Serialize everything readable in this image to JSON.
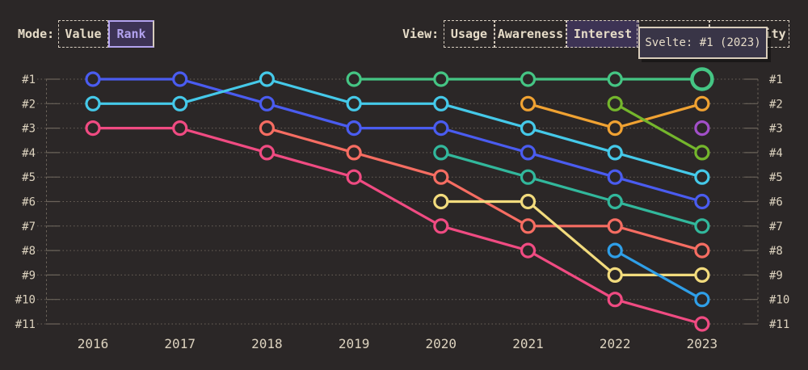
{
  "header": {
    "mode_label": "Mode:",
    "mode_options": [
      {
        "label": "Value",
        "selected": false
      },
      {
        "label": "Rank",
        "selected": true
      }
    ],
    "view_label": "View:",
    "view_options": [
      {
        "label": "Usage",
        "selected": false
      },
      {
        "label": "Awareness",
        "selected": false
      },
      {
        "label": "Interest",
        "selected": true
      },
      {
        "label": "",
        "selected": false
      },
      {
        "label": "Positivity",
        "selected": false
      }
    ]
  },
  "tooltip": {
    "text": "Svelte: #1 (2023)"
  },
  "colors": {
    "background": "#2b2727",
    "text_cream": "#e6dcc8",
    "grid": "#6b635a",
    "selected_bg": "#3d3355",
    "rank_accent": "#b2a2ee",
    "tooltip_bg": "#393547",
    "tooltip_border": "#d9cdbb"
  },
  "chart_data": {
    "type": "line",
    "subtype": "bump-chart-of-rankings",
    "title": "",
    "x": [
      2016,
      2017,
      2018,
      2019,
      2020,
      2021,
      2022,
      2023
    ],
    "y_ticks": [
      "#1",
      "#2",
      "#3",
      "#4",
      "#5",
      "#6",
      "#7",
      "#8",
      "#9",
      "#10",
      "#11"
    ],
    "y_axis": "rank, #1 at top",
    "grid": "dotted horizontal line per rank, dashed vertical axis lines both sides, rank labels on both sides",
    "legend_position": "none",
    "series": [
      {
        "name": "royal-blue",
        "color": "#4a5cf0",
        "ranks": [
          1,
          1,
          2,
          3,
          3,
          4,
          5,
          6
        ]
      },
      {
        "name": "cyan",
        "color": "#45c9e9",
        "ranks": [
          2,
          2,
          1,
          2,
          2,
          3,
          4,
          5
        ]
      },
      {
        "name": "pink",
        "color": "#f04b82",
        "ranks": [
          3,
          3,
          4,
          5,
          7,
          8,
          10,
          11
        ]
      },
      {
        "name": "salmon",
        "color": "#f66d62",
        "ranks": [
          null,
          null,
          3,
          4,
          5,
          7,
          7,
          8
        ]
      },
      {
        "name": "green",
        "color": "#45c584",
        "ranks": [
          null,
          null,
          null,
          1,
          1,
          1,
          1,
          1
        ]
      },
      {
        "name": "teal",
        "color": "#32b89c",
        "ranks": [
          null,
          null,
          null,
          null,
          4,
          5,
          6,
          7
        ]
      },
      {
        "name": "yellow",
        "color": "#f2db7d",
        "ranks": [
          null,
          null,
          null,
          null,
          6,
          6,
          9,
          9
        ]
      },
      {
        "name": "amber",
        "color": "#f0a232",
        "ranks": [
          null,
          null,
          null,
          null,
          null,
          2,
          3,
          2
        ]
      },
      {
        "name": "olive",
        "color": "#74b62c",
        "ranks": [
          null,
          null,
          null,
          null,
          null,
          null,
          2,
          4
        ]
      },
      {
        "name": "dodger-blue",
        "color": "#2f9fe8",
        "ranks": [
          null,
          null,
          null,
          null,
          null,
          null,
          8,
          10
        ]
      },
      {
        "name": "purple",
        "color": "#a24fc8",
        "ranks": [
          null,
          null,
          null,
          null,
          null,
          null,
          null,
          3
        ]
      }
    ],
    "highlight": {
      "series": "green",
      "year": 2023,
      "rank": 1,
      "tooltip": "Svelte: #1 (2023)"
    }
  }
}
